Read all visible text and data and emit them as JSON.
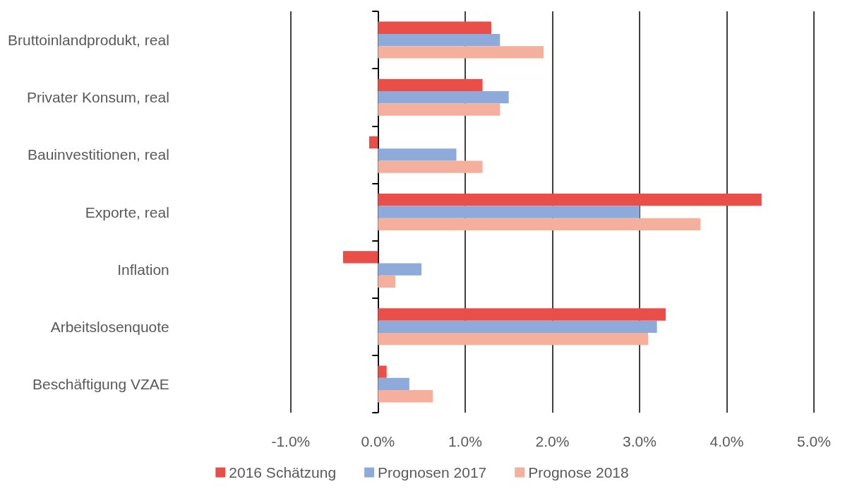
{
  "chart_data": {
    "type": "bar",
    "orientation": "horizontal",
    "categories": [
      "Bruttoinlandprodukt, real",
      "Privater Konsum, real",
      "Bauinvestitionen, real",
      "Exporte, real",
      "Inflation",
      "Arbeitslosenquote",
      "Beschäftigung VZAE"
    ],
    "series": [
      {
        "name": "2016 Schätzung",
        "color": "#e94f48",
        "values": [
          1.3,
          1.2,
          -0.1,
          4.4,
          -0.4,
          3.3,
          0.1
        ]
      },
      {
        "name": "Prognosen 2017",
        "color": "#8eaadb",
        "values": [
          1.4,
          1.5,
          0.9,
          3.0,
          0.5,
          3.2,
          0.36
        ]
      },
      {
        "name": "Prognose 2018",
        "color": "#f4b09c",
        "values": [
          1.9,
          1.4,
          1.2,
          3.7,
          0.2,
          3.1,
          0.63
        ]
      }
    ],
    "xlim": [
      -1,
      5
    ],
    "xticks": [
      {
        "value": -1,
        "label": "-1.0%"
      },
      {
        "value": 0,
        "label": "0.0%"
      },
      {
        "value": 1,
        "label": "1.0%"
      },
      {
        "value": 2,
        "label": "2.0%"
      },
      {
        "value": 3,
        "label": "3.0%"
      },
      {
        "value": 4,
        "label": "4.0%"
      },
      {
        "value": 5,
        "label": "5.0%"
      }
    ],
    "grid": "x",
    "legend": "bottom"
  }
}
